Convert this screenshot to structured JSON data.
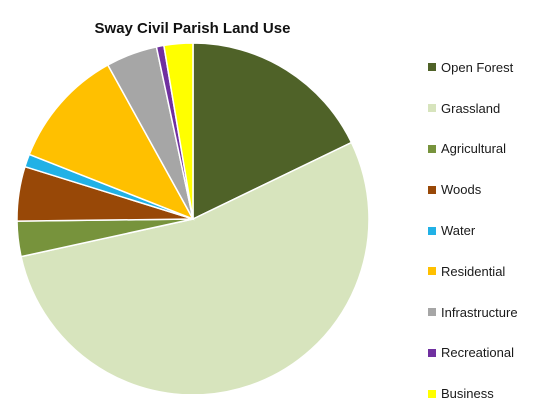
{
  "chart_data": {
    "type": "pie",
    "title": "Sway Civil Parish Land Use",
    "legend_position": "right",
    "slices": [
      {
        "label": "Open Forest",
        "value": 18.2,
        "color": "#4f6228"
      },
      {
        "label": "Grassland",
        "value": 54.8,
        "color": "#d7e4bd"
      },
      {
        "label": "Agricultural",
        "value": 3.3,
        "color": "#77933c"
      },
      {
        "label": "Woods",
        "value": 5.1,
        "color": "#984807"
      },
      {
        "label": "Water",
        "value": 1.2,
        "color": "#21b1e6"
      },
      {
        "label": "Residential",
        "value": 11.2,
        "color": "#ffc000"
      },
      {
        "label": "Infrastructure",
        "value": 4.8,
        "color": "#a6a6a6"
      },
      {
        "label": "Recreational",
        "value": 0.7,
        "color": "#7030a0"
      },
      {
        "label": "Business",
        "value": 2.7,
        "color": "#ffff00"
      }
    ]
  }
}
